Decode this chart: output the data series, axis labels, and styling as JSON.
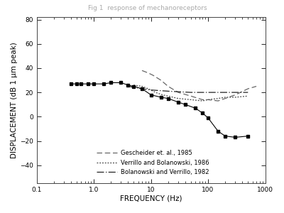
{
  "title": "Fig 1  response of mechanoreceptors",
  "xlabel": "FREQUENCY (Hz)",
  "ylabel": "DISPLACEMENT (dB 1 μm peak)",
  "xlim": [
    0.1,
    1000
  ],
  "ylim": [
    -55,
    82
  ],
  "yticks": [
    -40,
    -20,
    0,
    20,
    40,
    60,
    80
  ],
  "background_color": "#ffffff",
  "data_dots": {
    "x": [
      0.4,
      0.5,
      0.6,
      0.8,
      1.0,
      1.5,
      2.0,
      3.0,
      4.0,
      5.0,
      7.0,
      10.0,
      15.0,
      20.0,
      30.0,
      40.0,
      60.0,
      80.0,
      100.0,
      150.0,
      200.0,
      300.0,
      500.0
    ],
    "y": [
      27,
      27,
      27,
      27,
      27,
      27,
      28,
      28,
      26,
      25,
      23,
      18,
      16,
      15,
      12,
      10,
      7,
      3,
      -1,
      -12,
      -16,
      -17,
      -16
    ]
  },
  "gescheider_1985": {
    "x": [
      7.0,
      9.0,
      11.0,
      15.0,
      20.0,
      30.0,
      50.0,
      80.0,
      100.0,
      150.0,
      200.0,
      300.0,
      500.0,
      700.0
    ],
    "y": [
      38,
      36,
      34,
      30,
      25,
      20,
      17,
      14,
      14,
      13,
      15,
      18,
      23,
      25
    ],
    "color": "#666666"
  },
  "verrillo_1986": {
    "x": [
      5.0,
      7.0,
      9.0,
      12.0,
      16.0,
      20.0,
      30.0,
      50.0,
      80.0,
      100.0,
      150.0,
      200.0,
      300.0,
      500.0
    ],
    "y": [
      26,
      25,
      23,
      20,
      18,
      17,
      15,
      14,
      13,
      14,
      15,
      16,
      16,
      17
    ],
    "color": "#444444"
  },
  "bolanowski_1982": {
    "x": [
      4.0,
      7.0,
      10.0,
      20.0,
      50.0,
      100.0,
      200.0,
      500.0
    ],
    "y": [
      25,
      23,
      22,
      21,
      20,
      20,
      20,
      20
    ],
    "color": "#222222"
  },
  "legend_labels": [
    "Gescheider et. al., 1985",
    "Verrillo and Bolanowski, 1986",
    "Bolanowski and Verrillo, 1982"
  ],
  "font_size_axis_label": 7.5,
  "font_size_tick": 6.5,
  "font_size_legend": 6.0,
  "font_size_title": 6.5
}
